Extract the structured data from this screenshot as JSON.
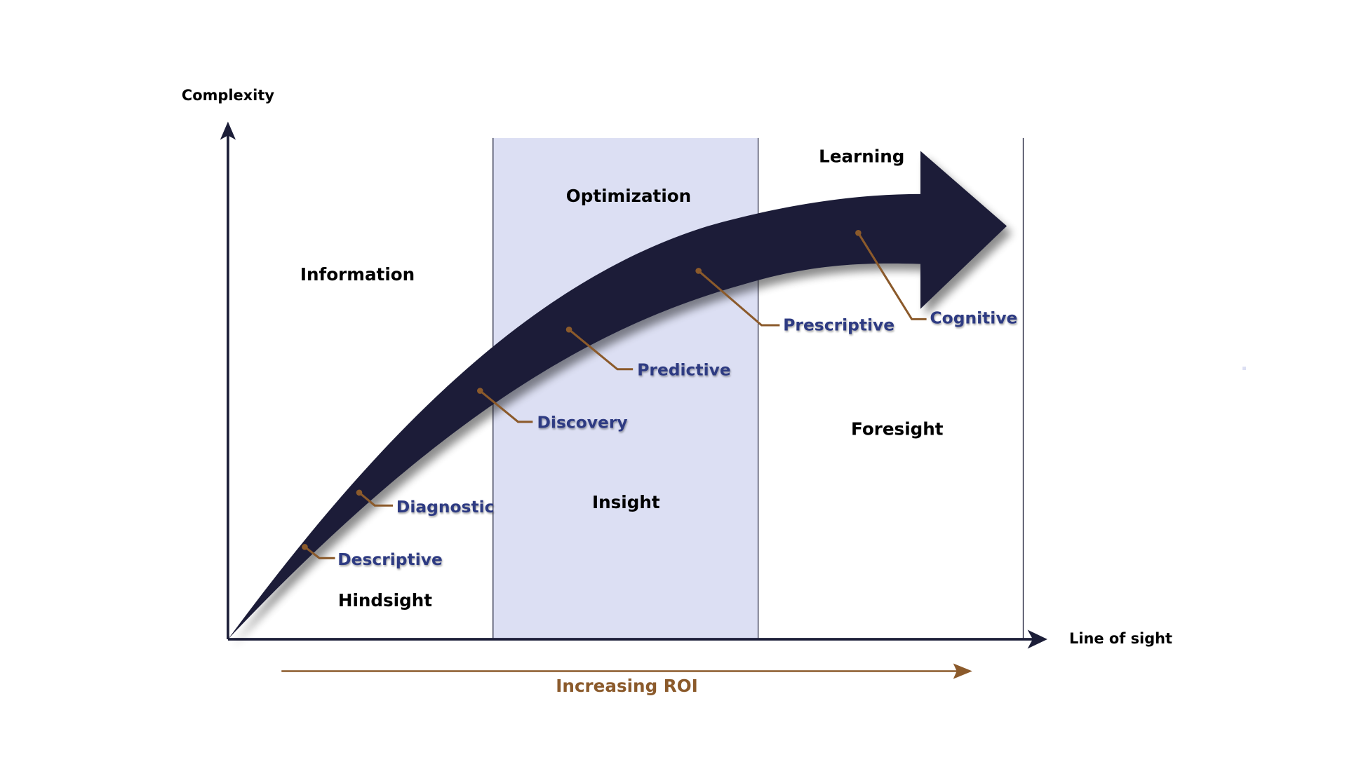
{
  "axes": {
    "y_label": "Complexity",
    "x_label": "Line of sight"
  },
  "zones": {
    "information": "Information",
    "optimization": "Optimization",
    "learning": "Learning",
    "hindsight": "Hindsight",
    "insight": "Insight",
    "foresight": "Foresight"
  },
  "stages": [
    "Descriptive",
    "Diagnostic",
    "Discovery",
    "Predictive",
    "Prescriptive",
    "Cognitive"
  ],
  "roi_label": "Increasing ROI",
  "colors": {
    "arrow": "#1c1e38",
    "band": "#dcdff3",
    "stage_text": "#2d3a82",
    "callout": "#8b5a2b",
    "roi": "#8b5a2b"
  }
}
